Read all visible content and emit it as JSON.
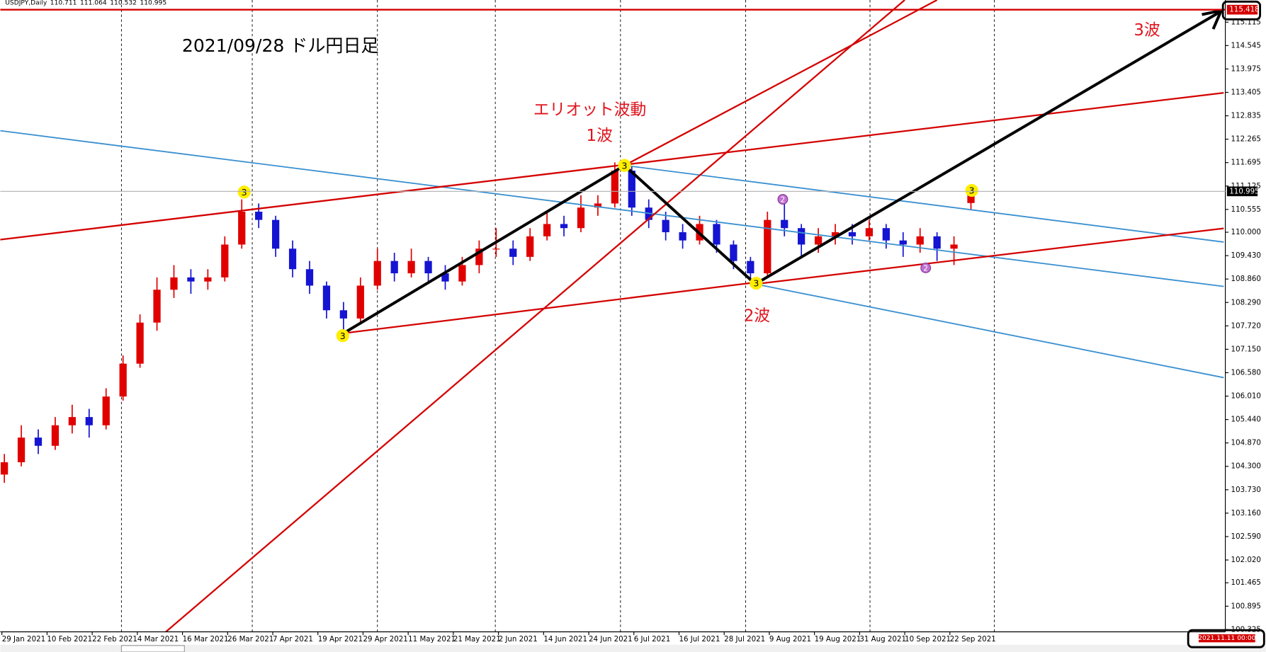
{
  "header": {
    "symbol": "USDJPY,Daily"
  },
  "annotations": {
    "title": "2021/09/28 ドル円日足",
    "wave_name": "エリオット波動",
    "wave1": "1波",
    "wave2": "2波",
    "wave3": "3波"
  },
  "wave_markers": [
    "3",
    "3",
    "3",
    "3",
    "3",
    "2",
    "2"
  ],
  "time_tag": "2021.11.11 00:00",
  "chart_data": {
    "type": "candlestick",
    "x": [
      "29 Jan 2021",
      "10 Feb 2021",
      "22 Feb 2021",
      "4 Mar 2021",
      "16 Mar 2021",
      "26 Mar 2021",
      "7 Apr 2021",
      "19 Apr 2021",
      "29 Apr 2021",
      "11 May 2021",
      "21 May 2021",
      "2 Jun 2021",
      "14 Jun 2021",
      "24 Jun 2021",
      "6 Jul 2021",
      "16 Jul 2021",
      "28 Jul 2021",
      "9 Aug 2021",
      "19 Aug 2021",
      "31 Aug 2021",
      "10 Sep 2021",
      "22 Sep 2021"
    ],
    "ohlc": [
      [
        104.1,
        104.6,
        103.9,
        104.4
      ],
      [
        104.4,
        105.3,
        104.3,
        105.0
      ],
      [
        105.0,
        105.2,
        104.6,
        104.8
      ],
      [
        104.8,
        105.5,
        104.7,
        105.3
      ],
      [
        105.3,
        105.8,
        105.1,
        105.5
      ],
      [
        105.5,
        105.7,
        105.0,
        105.3
      ],
      [
        105.3,
        106.2,
        105.2,
        106.0
      ],
      [
        106.0,
        107.0,
        105.9,
        106.8
      ],
      [
        106.8,
        108.0,
        106.7,
        107.8
      ],
      [
        107.8,
        108.9,
        107.6,
        108.6
      ],
      [
        108.6,
        109.2,
        108.4,
        108.9
      ],
      [
        108.9,
        109.1,
        108.5,
        108.8
      ],
      [
        108.8,
        109.1,
        108.6,
        108.9
      ],
      [
        108.9,
        109.9,
        108.8,
        109.7
      ],
      [
        109.7,
        110.8,
        109.6,
        110.5
      ],
      [
        110.5,
        110.7,
        110.1,
        110.3
      ],
      [
        110.3,
        110.4,
        109.4,
        109.6
      ],
      [
        109.6,
        109.8,
        108.9,
        109.1
      ],
      [
        109.1,
        109.3,
        108.5,
        108.7
      ],
      [
        108.7,
        108.8,
        107.9,
        108.1
      ],
      [
        108.1,
        108.3,
        107.6,
        107.9
      ],
      [
        107.9,
        108.9,
        107.8,
        108.7
      ],
      [
        108.7,
        109.6,
        108.6,
        109.3
      ],
      [
        109.3,
        109.5,
        108.8,
        109.0
      ],
      [
        109.0,
        109.6,
        108.9,
        109.3
      ],
      [
        109.3,
        109.4,
        108.8,
        109.0
      ],
      [
        109.0,
        109.2,
        108.6,
        108.8
      ],
      [
        108.8,
        109.4,
        108.7,
        109.2
      ],
      [
        109.2,
        109.8,
        109.0,
        109.6
      ],
      [
        109.6,
        110.1,
        109.4,
        109.6
      ],
      [
        109.6,
        109.8,
        109.2,
        109.4
      ],
      [
        109.4,
        110.1,
        109.3,
        109.9
      ],
      [
        109.9,
        110.5,
        109.8,
        110.2
      ],
      [
        110.2,
        110.4,
        109.9,
        110.1
      ],
      [
        110.1,
        110.9,
        110.0,
        110.6
      ],
      [
        110.6,
        110.9,
        110.4,
        110.7
      ],
      [
        110.7,
        111.7,
        110.6,
        111.5
      ],
      [
        111.5,
        111.6,
        110.4,
        110.6
      ],
      [
        110.6,
        110.8,
        110.1,
        110.3
      ],
      [
        110.3,
        110.5,
        109.8,
        110.0
      ],
      [
        110.0,
        110.2,
        109.6,
        109.8
      ],
      [
        109.8,
        110.4,
        109.7,
        110.2
      ],
      [
        110.2,
        110.3,
        109.5,
        109.7
      ],
      [
        109.7,
        109.8,
        109.1,
        109.3
      ],
      [
        109.3,
        109.4,
        108.7,
        109.0
      ],
      [
        109.0,
        110.5,
        108.9,
        110.3
      ],
      [
        110.3,
        110.8,
        109.9,
        110.1
      ],
      [
        110.1,
        110.2,
        109.4,
        109.7
      ],
      [
        109.7,
        110.1,
        109.5,
        109.9
      ],
      [
        109.9,
        110.2,
        109.7,
        110.0
      ],
      [
        110.0,
        110.2,
        109.7,
        109.9
      ],
      [
        109.9,
        110.3,
        109.8,
        110.1
      ],
      [
        110.1,
        110.2,
        109.6,
        109.8
      ],
      [
        109.8,
        110.0,
        109.4,
        109.7
      ],
      [
        109.7,
        110.1,
        109.5,
        109.9
      ],
      [
        109.9,
        110.0,
        109.3,
        109.6
      ],
      [
        109.6,
        109.9,
        109.2,
        109.7
      ],
      [
        110.711,
        111.064,
        110.532,
        110.995
      ]
    ],
    "up_color": "#e00000",
    "down_color": "#1414d2",
    "ylim": [
      100.271,
      115.654
    ],
    "yticks": [
      115.115,
      114.545,
      113.975,
      113.405,
      112.835,
      112.265,
      111.695,
      111.125,
      110.555,
      {
        "value": 110,
        "label": "110.000"
      },
      {
        "value": 109.43,
        "label": "109.430"
      },
      {
        "value": 108.86,
        "label": "108.860"
      },
      {
        "value": 108.29,
        "label": "108.290"
      },
      {
        "value": 107.72,
        "label": "107.720"
      },
      {
        "value": 107.15,
        "label": "107.150"
      },
      {
        "value": 106.58,
        "label": "106.580"
      },
      {
        "value": 106.01,
        "label": "106.010"
      },
      {
        "value": 105.44,
        "label": "105.440"
      },
      {
        "value": 104.87,
        "label": "104.870"
      },
      {
        "value": 104.3,
        "label": "104.300"
      },
      {
        "value": 103.73,
        "label": "103.730"
      },
      {
        "value": 103.16,
        "label": "103.160"
      },
      {
        "value": 102.59,
        "label": "102.590"
      },
      {
        "value": 102.02,
        "label": "102.020"
      },
      101.465,
      100.895,
      100.325
    ],
    "price_tags": [
      115.418,
      110.995
    ],
    "tag_colors": [
      "#d40000",
      "#000000"
    ],
    "line_colors": [
      "#d40000",
      "#b0b0b0"
    ]
  }
}
